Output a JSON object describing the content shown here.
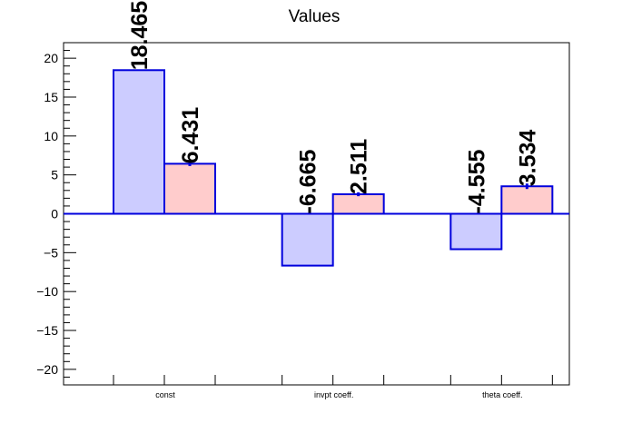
{
  "chart_data": {
    "type": "bar",
    "title": "Values",
    "categories": [
      "const",
      "invpt coeff.",
      "theta coeff."
    ],
    "series": [
      {
        "values": [
          18.465,
          -6.665,
          -4.555
        ],
        "fill": "#ccccff",
        "stroke": "#0000dd"
      },
      {
        "values": [
          6.431,
          2.511,
          3.534
        ],
        "fill": "#ffcccc",
        "stroke": "#0000dd",
        "error_bars": [
          0.3,
          0.25,
          0.35
        ]
      }
    ],
    "data_labels": [
      [
        "18.465",
        "-6.665",
        "-4.555"
      ],
      [
        "6.431",
        "2.511",
        "3.534"
      ]
    ],
    "ylim": [
      -22,
      22
    ],
    "yticks": [
      -20,
      -15,
      -10,
      -5,
      0,
      5,
      10,
      15,
      20
    ],
    "ytick_labels": [
      "−20",
      "−15",
      "−10",
      "−5",
      "0",
      "5",
      "10",
      "15",
      "20"
    ],
    "xlabel": "",
    "ylabel": "",
    "grid": false,
    "legend": "none",
    "zero_line_color": "#0000dd",
    "axis_color": "#000000"
  }
}
